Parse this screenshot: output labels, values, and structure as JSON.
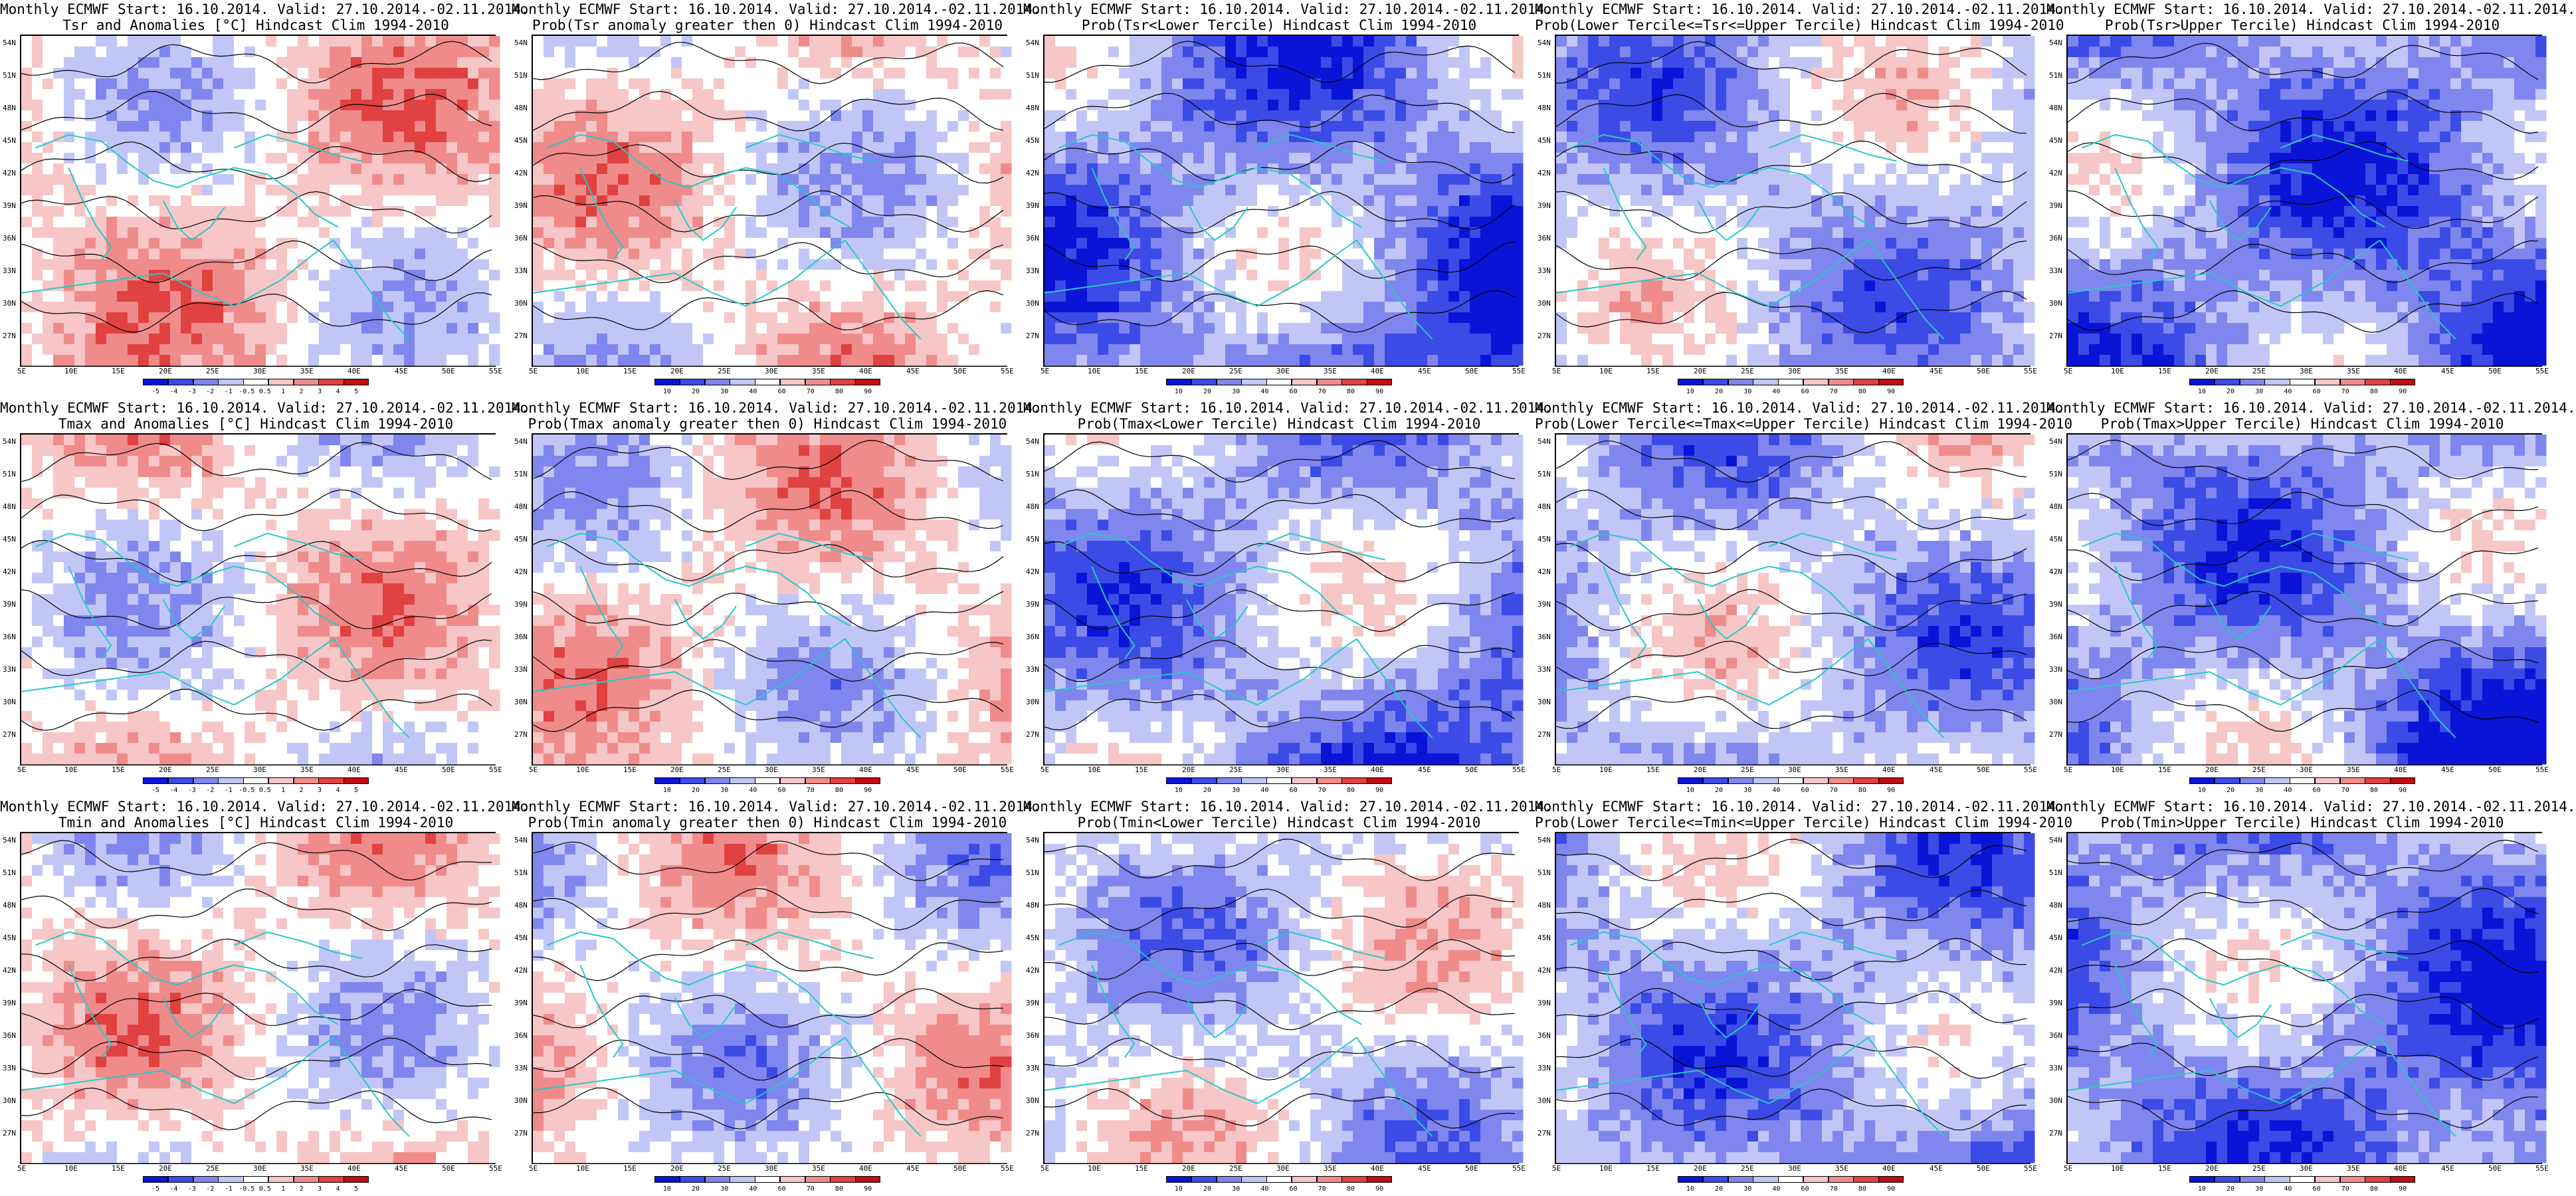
{
  "header": "Monthly ECMWF Start: 16.10.2014. Valid: 27.10.2014.-02.11.2014.",
  "lat_labels": [
    "54N",
    "51N",
    "48N",
    "45N",
    "42N",
    "39N",
    "36N",
    "33N",
    "30N",
    "27N"
  ],
  "lon_labels": [
    "5E",
    "10E",
    "15E",
    "20E",
    "25E",
    "30E",
    "35E",
    "40E",
    "45E",
    "50E",
    "55E"
  ],
  "colors": {
    "deep_blue": "#0a14d6",
    "blue": "#3c4ae6",
    "mid_blue": "#7f86ee",
    "light_blue": "#c2c6f7",
    "white": "#ffffff",
    "light_red": "#f7c6c6",
    "mid_red": "#f08b8b",
    "red": "#e04141",
    "deep_red": "#c00d0d",
    "coast": "#28c8c8",
    "contour": "#000000"
  },
  "anomaly_scale": [
    "-5",
    "-4",
    "-3",
    "-2",
    "-1",
    "-0.5",
    "0.5",
    "1",
    "2",
    "3",
    "4",
    "5"
  ],
  "prob_scale": [
    "10",
    "20",
    "30",
    "40",
    "60",
    "70",
    "80",
    "90"
  ],
  "panels": [
    {
      "title": "Tsr and Anomalies [°C] Hindcast Clim 1994-2010",
      "scale": "anomaly",
      "bias": 0.1,
      "seed": 3
    },
    {
      "title": "Prob(Tsr anomaly greater then 0) Hindcast Clim 1994-2010",
      "scale": "prob",
      "bias": 0.05,
      "seed": 7
    },
    {
      "title": "Prob(Tsr<Lower Tercile) Hindcast Clim 1994-2010",
      "scale": "prob",
      "bias": -0.35,
      "seed": 11
    },
    {
      "title": "Prob(Lower Tercile<=Tsr<=Upper Tercile) Hindcast Clim 1994-2010",
      "scale": "prob",
      "bias": -0.2,
      "seed": 13
    },
    {
      "title": "Prob(Tsr>Upper Tercile) Hindcast Clim 1994-2010",
      "scale": "prob",
      "bias": -0.35,
      "seed": 17
    },
    {
      "title": "Tmax and Anomalies [°C] Hindcast Clim 1994-2010",
      "scale": "anomaly",
      "bias": 0.05,
      "seed": 19
    },
    {
      "title": "Prob(Tmax anomaly greater then 0) Hindcast Clim 1994-2010",
      "scale": "prob",
      "bias": 0.05,
      "seed": 23
    },
    {
      "title": "Prob(Tmax<Lower Tercile) Hindcast Clim 1994-2010",
      "scale": "prob",
      "bias": -0.25,
      "seed": 29
    },
    {
      "title": "Prob(Lower Tercile<=Tmax<=Upper Tercile) Hindcast Clim 1994-2010",
      "scale": "prob",
      "bias": -0.2,
      "seed": 31
    },
    {
      "title": "Prob(Tmax>Upper Tercile) Hindcast Clim 1994-2010",
      "scale": "prob",
      "bias": -0.3,
      "seed": 37
    },
    {
      "title": "Tmin and Anomalies [°C] Hindcast Clim 1994-2010",
      "scale": "anomaly",
      "bias": 0.05,
      "seed": 41
    },
    {
      "title": "Prob(Tmin anomaly greater then 0) Hindcast Clim 1994-2010",
      "scale": "prob",
      "bias": 0.0,
      "seed": 43
    },
    {
      "title": "Prob(Tmin<Lower Tercile) Hindcast Clim 1994-2010",
      "scale": "prob",
      "bias": -0.1,
      "seed": 47
    },
    {
      "title": "Prob(Lower Tercile<=Tmin<=Upper Tercile) Hindcast Clim 1994-2010",
      "scale": "prob",
      "bias": -0.25,
      "seed": 53
    },
    {
      "title": "Prob(Tmin>Upper Tercile) Hindcast Clim 1994-2010",
      "scale": "prob",
      "bias": -0.35,
      "seed": 59
    }
  ]
}
